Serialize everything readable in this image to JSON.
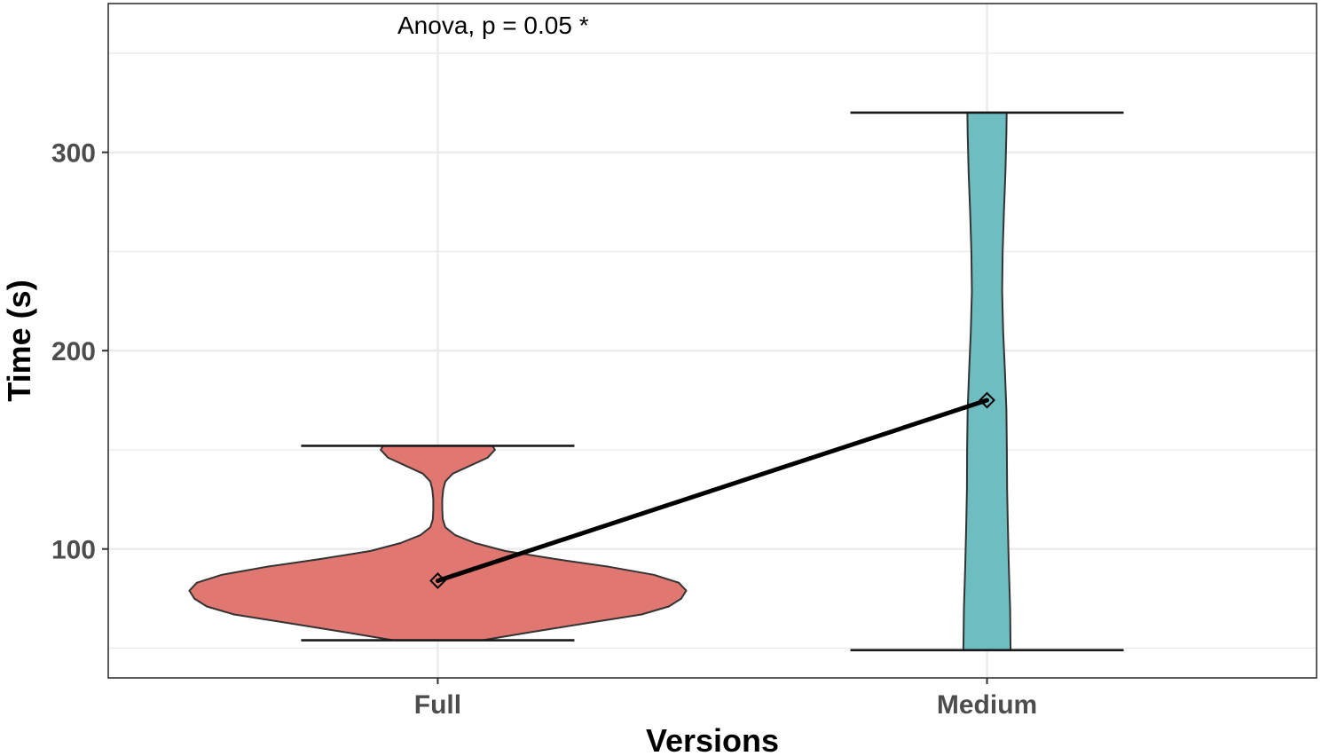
{
  "chart_data": {
    "type": "violin",
    "xlabel": "Versions",
    "ylabel": "Time (s)",
    "categories": [
      "Full",
      "Medium"
    ],
    "ylim": [
      35,
      375
    ],
    "y_ticks": [
      100,
      200,
      300
    ],
    "y_tick_labels": [
      "100",
      "200",
      "300"
    ],
    "grid": true,
    "annotation": "Anova, p = 0.05  *",
    "series": [
      {
        "category": "Full",
        "color": "#E07770",
        "min": 54,
        "max": 152,
        "mean": 84,
        "density_profile": [
          [
            54,
            0.18
          ],
          [
            58,
            0.37
          ],
          [
            63,
            0.62
          ],
          [
            67,
            0.82
          ],
          [
            71,
            0.93
          ],
          [
            75,
            0.98
          ],
          [
            79,
            1.0
          ],
          [
            83,
            0.97
          ],
          [
            87,
            0.87
          ],
          [
            91,
            0.69
          ],
          [
            95,
            0.47
          ],
          [
            99,
            0.27
          ],
          [
            103,
            0.15
          ],
          [
            107,
            0.07
          ],
          [
            111,
            0.03
          ],
          [
            115,
            0.02
          ],
          [
            120,
            0.018
          ],
          [
            125,
            0.018
          ],
          [
            130,
            0.022
          ],
          [
            134,
            0.03
          ],
          [
            138,
            0.06
          ],
          [
            142,
            0.13
          ],
          [
            146,
            0.2
          ],
          [
            150,
            0.23
          ],
          [
            152,
            0.22
          ]
        ]
      },
      {
        "category": "Medium",
        "color": "#6DBDC1",
        "min": 49,
        "max": 320,
        "mean": 175,
        "density_profile": [
          [
            49,
            0.095
          ],
          [
            70,
            0.093
          ],
          [
            90,
            0.088
          ],
          [
            110,
            0.084
          ],
          [
            130,
            0.081
          ],
          [
            150,
            0.08
          ],
          [
            170,
            0.078
          ],
          [
            190,
            0.072
          ],
          [
            210,
            0.065
          ],
          [
            230,
            0.061
          ],
          [
            250,
            0.063
          ],
          [
            270,
            0.068
          ],
          [
            290,
            0.074
          ],
          [
            310,
            0.078
          ],
          [
            320,
            0.079
          ]
        ]
      }
    ],
    "mean_line": {
      "from": "Full",
      "to": "Medium",
      "values": [
        84,
        175
      ]
    }
  }
}
